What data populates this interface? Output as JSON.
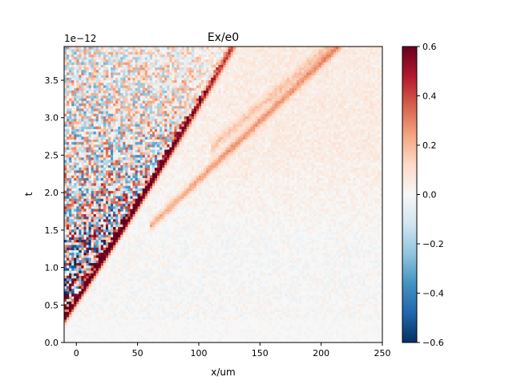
{
  "chart_data": {
    "type": "heatmap",
    "title": "Ex/e0",
    "xlabel": "x/um",
    "ylabel": "t",
    "y_offset_label": "1e−12",
    "xlim": [
      -10,
      250
    ],
    "ylim": [
      0.0,
      3.95
    ],
    "x_ticks": [
      0,
      50,
      100,
      150,
      200,
      250
    ],
    "x_tick_labels": [
      "0",
      "50",
      "100",
      "150",
      "200",
      "250"
    ],
    "y_ticks": [
      0.0,
      0.5,
      1.0,
      1.5,
      2.0,
      2.5,
      3.0,
      3.5
    ],
    "y_tick_labels": [
      "0.0",
      "0.5",
      "1.0",
      "1.5",
      "2.0",
      "2.5",
      "3.0",
      "3.5"
    ],
    "colorbar": {
      "colormap": "RdBu_r",
      "vmin": -0.6,
      "vmax": 0.6,
      "ticks": [
        -0.6,
        -0.4,
        -0.2,
        0.0,
        0.2,
        0.4,
        0.6
      ],
      "tick_labels": [
        "−0.6",
        "−0.4",
        "−0.2",
        "0.0",
        "0.2",
        "0.4",
        "0.6"
      ],
      "stops": [
        "#053061",
        "#2166ac",
        "#4393c3",
        "#92c5de",
        "#d1e5f0",
        "#f7f7f7",
        "#fddbc7",
        "#f4a582",
        "#d6604d",
        "#b2182b",
        "#67001f"
      ]
    },
    "grid": false
  }
}
